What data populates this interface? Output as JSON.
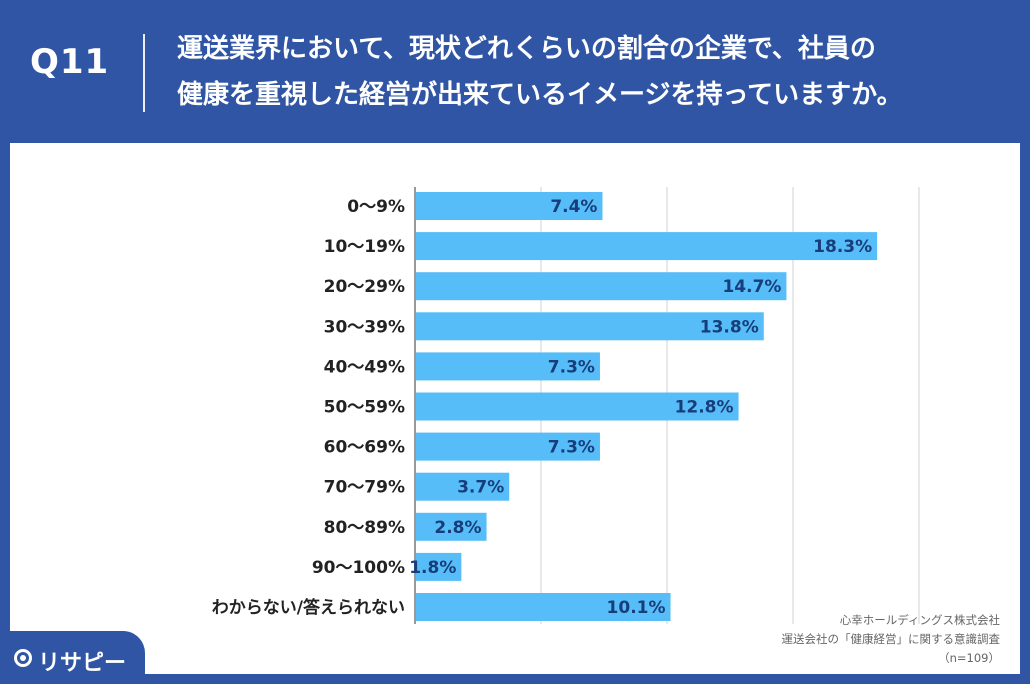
{
  "header": {
    "label": "Q11",
    "question_line1": "運送業界において、現状どれくらいの割合の企業で、社員の",
    "question_line2": "健康を重視した経営が出来ているイメージを持っていますか。"
  },
  "chart_data": {
    "type": "bar",
    "orientation": "horizontal",
    "title": "",
    "xlabel": "",
    "ylabel": "",
    "categories": [
      "0〜9%",
      "10〜19%",
      "20〜29%",
      "30〜39%",
      "40〜49%",
      "50〜59%",
      "60〜69%",
      "70〜79%",
      "80〜89%",
      "90〜100%",
      "わからない/答えられない"
    ],
    "values": [
      7.4,
      18.3,
      14.7,
      13.8,
      7.3,
      12.8,
      7.3,
      3.7,
      2.8,
      1.8,
      10.1
    ],
    "value_labels": [
      "7.4%",
      "18.3%",
      "14.7%",
      "13.8%",
      "7.3%",
      "12.8%",
      "7.3%",
      "3.7%",
      "2.8%",
      "1.8%",
      "10.1%"
    ],
    "xlim": [
      0,
      20
    ],
    "grid": true,
    "bar_color": "#56bdf8",
    "grid_color": "#d0d0d0",
    "axis_color": "#333333"
  },
  "source": {
    "line1": "心幸ホールディングス株式会社",
    "line2": "運送会社の「健康経営」に関する意識調査",
    "line3": "（n=109）"
  },
  "logo": {
    "icon": "location-pin-icon",
    "text": "リサピー"
  },
  "colors": {
    "background": "#2f55a4",
    "panel": "#ffffff"
  }
}
